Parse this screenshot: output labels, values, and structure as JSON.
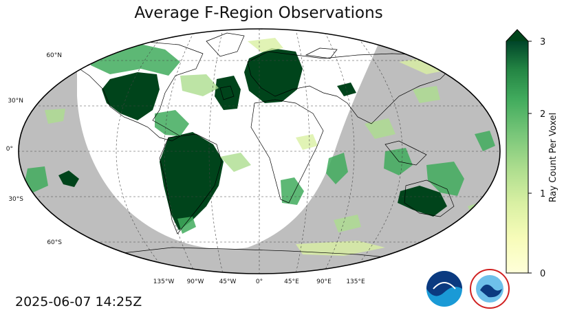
{
  "title": "Average F-Region Observations",
  "timestamp": "2025-06-07 14:25Z",
  "lat_labels": [
    "60°N",
    "30°N",
    "0°",
    "30°S",
    "60°S"
  ],
  "lon_labels": [
    "135°W",
    "90°W",
    "45°W",
    "0°",
    "45°E",
    "90°E",
    "135°E"
  ],
  "colorbar": {
    "label": "Ray Count Per Voxel",
    "ticks": [
      "0",
      "1",
      "2",
      "3"
    ],
    "min": 0,
    "max": 3,
    "extend": "max",
    "colormap": "YlGn"
  },
  "colors": {
    "night": "#bebebe",
    "day": "#ffffff",
    "low": "#ffffd9",
    "mid": "#78c679",
    "high": "#00441b"
  },
  "logos": [
    "noaa-logo",
    "national-weather-service-logo"
  ]
}
